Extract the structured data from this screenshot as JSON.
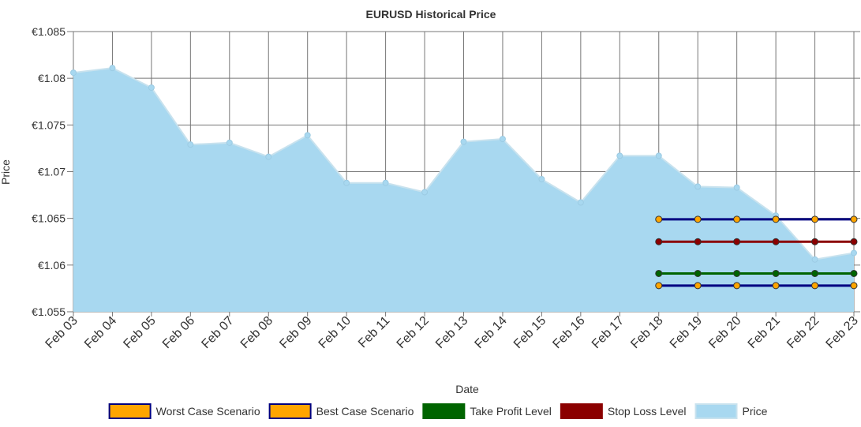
{
  "chart_data": {
    "type": "line",
    "title": "EURUSD  Historical Price",
    "x_label": "Date",
    "y_label": "Price",
    "categories": [
      "Feb 03",
      "Feb 04",
      "Feb 05",
      "Feb 06",
      "Feb 07",
      "Feb 08",
      "Feb 09",
      "Feb 10",
      "Feb 11",
      "Feb 12",
      "Feb 13",
      "Feb 14",
      "Feb 15",
      "Feb 16",
      "Feb 17",
      "Feb 18",
      "Feb 19",
      "Feb 20",
      "Feb 21",
      "Feb 22",
      "Feb 23"
    ],
    "ylim": [
      1.055,
      1.085
    ],
    "yticks": [
      {
        "value": 1.055,
        "label": "€1.055"
      },
      {
        "value": 1.06,
        "label": "€1.06"
      },
      {
        "value": 1.065,
        "label": "€1.065"
      },
      {
        "value": 1.07,
        "label": "€1.07"
      },
      {
        "value": 1.075,
        "label": "€1.075"
      },
      {
        "value": 1.08,
        "label": "€1.08"
      },
      {
        "value": 1.085,
        "label": "€1.085"
      }
    ],
    "grid": true,
    "series": [
      {
        "name": "Worst Case Scenario",
        "color": "#ffa500",
        "line_color": "#000080",
        "values": [
          null,
          null,
          null,
          null,
          null,
          null,
          null,
          null,
          null,
          null,
          null,
          null,
          null,
          null,
          null,
          1.0578,
          1.0578,
          1.0578,
          1.0578,
          1.0578,
          1.0578
        ]
      },
      {
        "name": "Best Case Scenario",
        "color": "#ffa500",
        "line_color": "#000080",
        "values": [
          null,
          null,
          null,
          null,
          null,
          null,
          null,
          null,
          null,
          null,
          null,
          null,
          null,
          null,
          null,
          1.0649,
          1.0649,
          1.0649,
          1.0649,
          1.0649,
          1.0649
        ]
      },
      {
        "name": "Take Profit Level",
        "color": "#006400",
        "line_color": "#006400",
        "values": [
          null,
          null,
          null,
          null,
          null,
          null,
          null,
          null,
          null,
          null,
          null,
          null,
          null,
          null,
          null,
          1.0591,
          1.0591,
          1.0591,
          1.0591,
          1.0591,
          1.0591
        ]
      },
      {
        "name": "Stop Loss Level",
        "color": "#8b0000",
        "line_color": "#8b0000",
        "values": [
          null,
          null,
          null,
          null,
          null,
          null,
          null,
          null,
          null,
          null,
          null,
          null,
          null,
          null,
          null,
          1.0625,
          1.0625,
          1.0625,
          1.0625,
          1.0625,
          1.0625
        ]
      },
      {
        "name": "Price",
        "color": "#a8d8f0",
        "line_color": "#c8e2ee",
        "fill": true,
        "values": [
          1.0806,
          1.0811,
          1.079,
          1.0729,
          1.0731,
          1.0716,
          1.0739,
          1.0688,
          1.0688,
          1.0678,
          1.0732,
          1.0735,
          1.0692,
          1.0667,
          1.0717,
          1.0717,
          1.0684,
          1.0683,
          1.0653,
          1.0606,
          1.0613
        ]
      }
    ]
  }
}
